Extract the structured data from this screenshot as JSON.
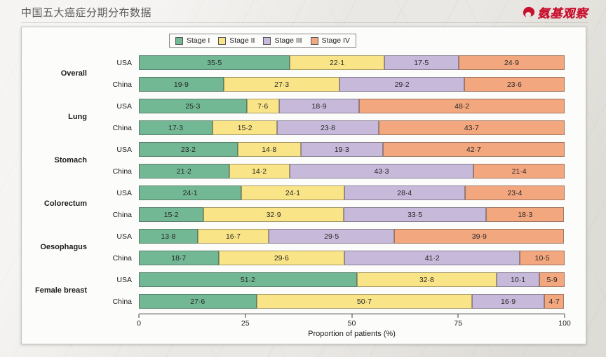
{
  "header": {
    "title": "中国五大癌症分期分布数据",
    "brand": "氨基观察"
  },
  "chart_data": {
    "type": "bar",
    "orientation": "horizontal",
    "stacked": true,
    "series_labels": [
      "Stage I",
      "Stage II",
      "Stage III",
      "Stage IV"
    ],
    "colors": [
      "#72b895",
      "#f9e587",
      "#c7b9da",
      "#f3a77f"
    ],
    "xlabel": "Proportion of patients (%)",
    "xlim": [
      0,
      100
    ],
    "xticks": [
      0,
      25,
      50,
      75,
      100
    ],
    "value_decimal_separator": "·",
    "legend_position": "top",
    "grid": false,
    "groups": [
      {
        "name": "Overall",
        "rows": [
          {
            "label": "USA",
            "values": [
              35.5,
              22.1,
              17.5,
              24.9
            ]
          },
          {
            "label": "China",
            "values": [
              19.9,
              27.3,
              29.2,
              23.6
            ]
          }
        ]
      },
      {
        "name": "Lung",
        "rows": [
          {
            "label": "USA",
            "values": [
              25.3,
              7.6,
              18.9,
              48.2
            ]
          },
          {
            "label": "China",
            "values": [
              17.3,
              15.2,
              23.8,
              43.7
            ]
          }
        ]
      },
      {
        "name": "Stomach",
        "rows": [
          {
            "label": "USA",
            "values": [
              23.2,
              14.8,
              19.3,
              42.7
            ]
          },
          {
            "label": "China",
            "values": [
              21.2,
              14.2,
              43.3,
              21.4
            ]
          }
        ]
      },
      {
        "name": "Colorectum",
        "rows": [
          {
            "label": "USA",
            "values": [
              24.1,
              24.1,
              28.4,
              23.4
            ]
          },
          {
            "label": "China",
            "values": [
              15.2,
              32.9,
              33.5,
              18.3
            ]
          }
        ]
      },
      {
        "name": "Oesophagus",
        "rows": [
          {
            "label": "USA",
            "values": [
              13.8,
              16.7,
              29.5,
              39.9
            ]
          },
          {
            "label": "China",
            "values": [
              18.7,
              29.6,
              41.2,
              10.5
            ]
          }
        ]
      },
      {
        "name": "Female breast",
        "rows": [
          {
            "label": "USA",
            "values": [
              51.2,
              32.8,
              10.1,
              5.9
            ]
          },
          {
            "label": "China",
            "values": [
              27.6,
              50.7,
              16.9,
              4.7
            ]
          }
        ]
      }
    ]
  }
}
